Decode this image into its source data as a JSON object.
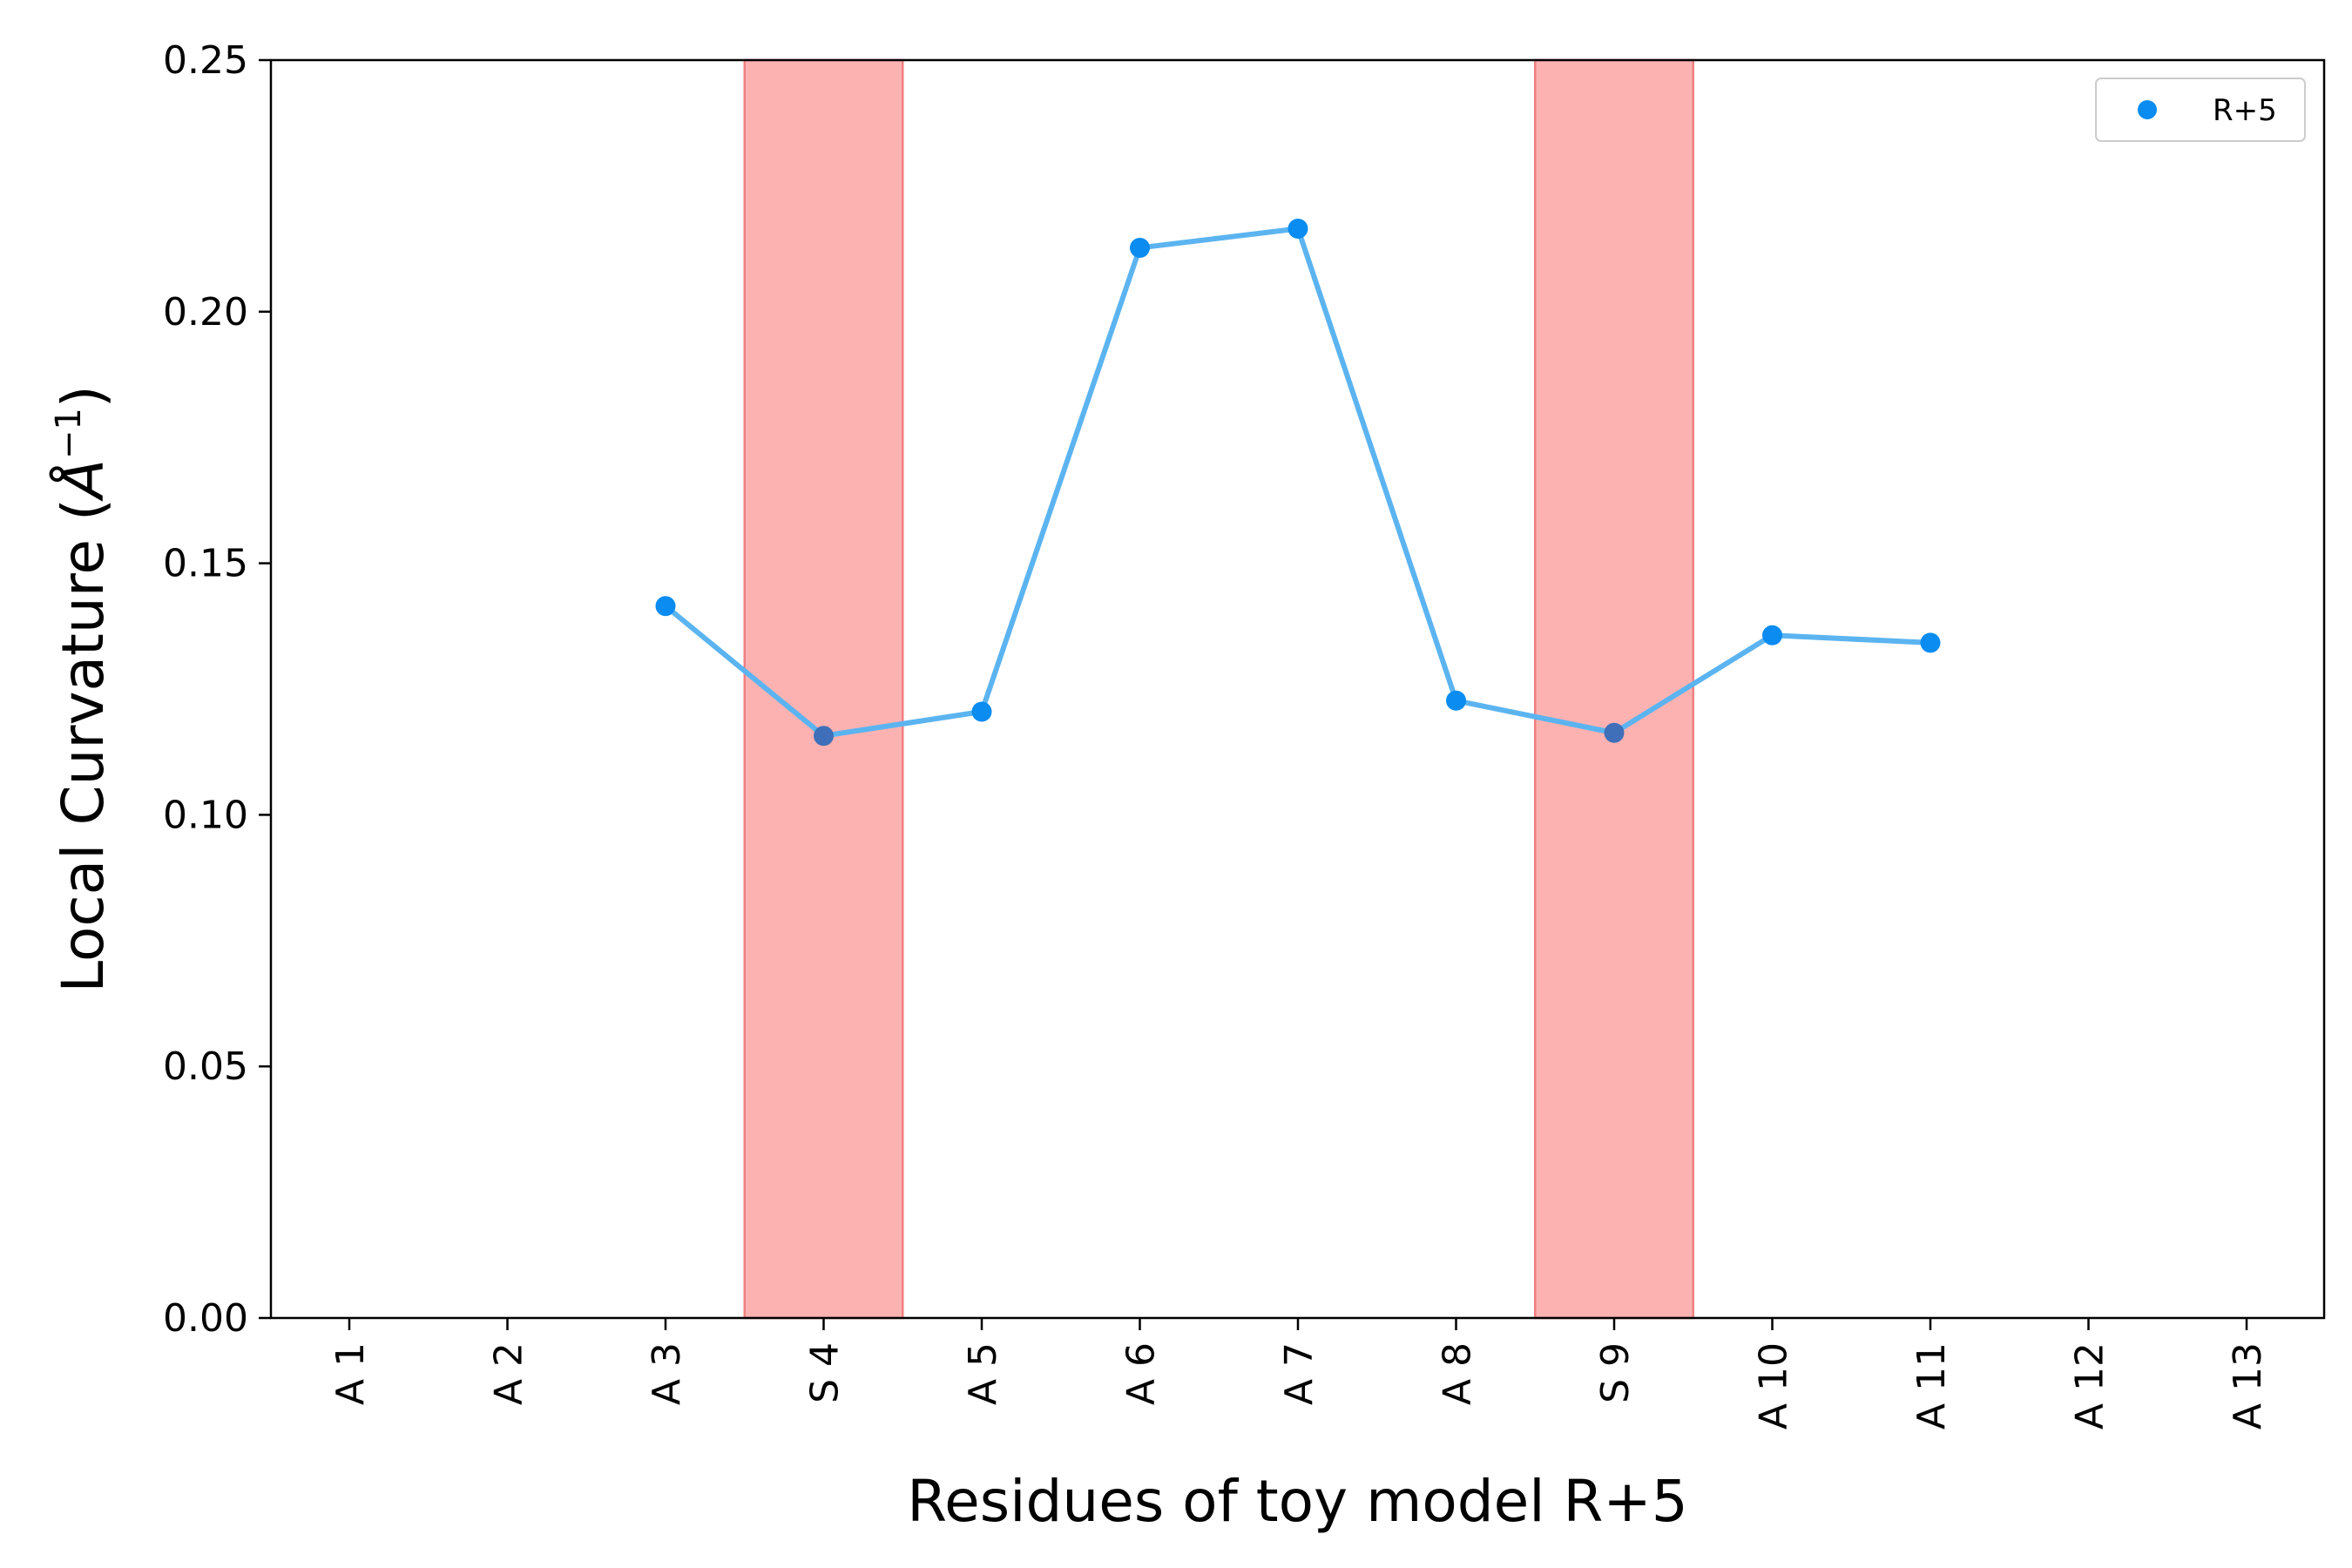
{
  "chart_data": {
    "type": "line",
    "xlabel": "Residues of toy model R+5",
    "ylabel_main": "Local Curvature (",
    "ylabel_unit": "Å",
    "ylabel_sup": "−1",
    "ylabel_close": ")",
    "categories": [
      "A 1",
      "A 2",
      "A 3",
      "S 4",
      "A 5",
      "A 6",
      "A 7",
      "A 8",
      "S 9",
      "A 10",
      "A 11",
      "A 12",
      "A 13"
    ],
    "ylim": [
      0,
      0.25
    ],
    "yticks": [
      "0.00",
      "0.05",
      "0.10",
      "0.15",
      "0.20",
      "0.25"
    ],
    "series": [
      {
        "name": "R+5",
        "color": "#0a8cf0",
        "line_color": "#5bb4f0",
        "x": [
          "A 3",
          "S 4",
          "A 5",
          "A 6",
          "A 7",
          "A 8",
          "S 9",
          "A 10",
          "A 11"
        ],
        "values": [
          0.1415,
          0.1157,
          0.1205,
          0.2127,
          0.2165,
          0.1227,
          0.1163,
          0.1357,
          0.1342
        ]
      }
    ],
    "highlighted_categories": [
      "S 4",
      "S 9"
    ],
    "highlight_color": "#fdb2b2",
    "legend_position": "upper-right",
    "grid": false
  }
}
